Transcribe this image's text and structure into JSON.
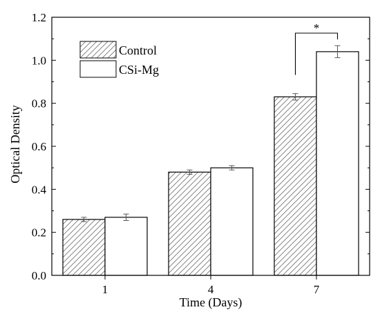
{
  "chart_data": {
    "type": "bar",
    "xlabel": "Time (Days)",
    "ylabel": "Optical Density",
    "categories": [
      "1",
      "4",
      "7"
    ],
    "ylim": [
      0.0,
      1.2
    ],
    "yticks": [
      "0.0",
      "0.2",
      "0.4",
      "0.6",
      "0.8",
      "1.0",
      "1.2"
    ],
    "series": [
      {
        "name": "Control",
        "values": [
          0.26,
          0.48,
          0.83
        ],
        "errors": [
          0.01,
          0.01,
          0.015
        ],
        "pattern": "hatched"
      },
      {
        "name": "CSi-Mg",
        "values": [
          0.27,
          0.5,
          1.04
        ],
        "errors": [
          0.015,
          0.01,
          0.028
        ],
        "pattern": "open"
      }
    ],
    "significance": [
      {
        "category": "7",
        "label": "*"
      }
    ],
    "legend_position": "top-left",
    "grid": false
  }
}
